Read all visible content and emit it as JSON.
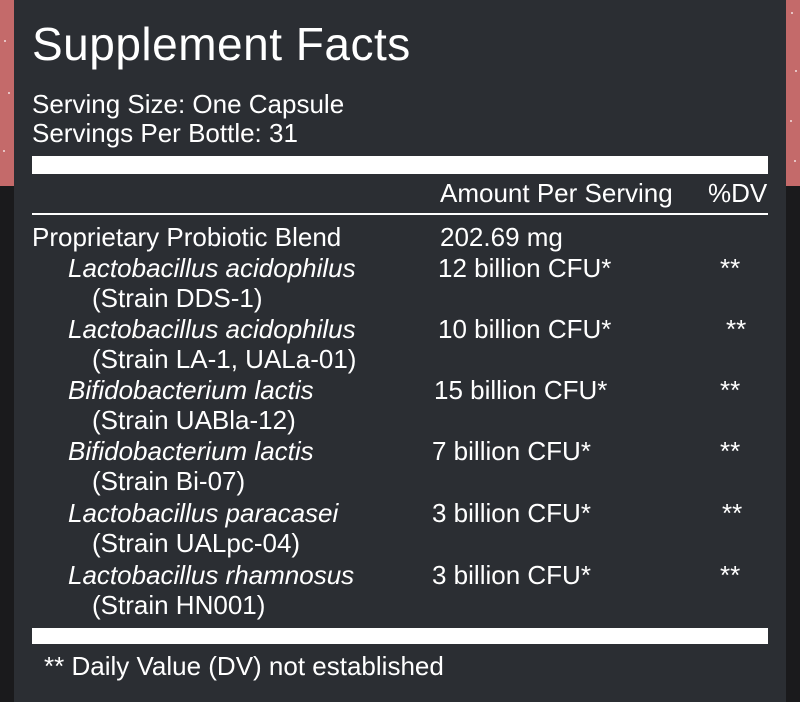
{
  "title": "Supplement Facts",
  "serving_size": "Serving Size: One Capsule",
  "servings_per_bottle": "Servings Per Bottle: 31",
  "columns": {
    "amount": "Amount Per Serving",
    "dv": "%DV"
  },
  "blend": {
    "name": "Proprietary Probiotic Blend",
    "amount": "202.69 mg"
  },
  "ingredients": [
    {
      "name": "Lactobacillus acidophilus",
      "strain": "(Strain DDS-1)",
      "amount": "12 billion CFU*",
      "dv": "**"
    },
    {
      "name": "Lactobacillus acidophilus",
      "strain": "(Strain LA-1, UALa-01)",
      "amount": "10 billion CFU*",
      "dv": "**"
    },
    {
      "name": "Bifidobacterium lactis",
      "strain": "(Strain UABla-12)",
      "amount": "15 billion CFU*",
      "dv": "**"
    },
    {
      "name": "Bifidobacterium lactis",
      "strain": "(Strain Bi-07)",
      "amount": "7 billion CFU*",
      "dv": "**"
    },
    {
      "name": "Lactobacillus paracasei",
      "strain": "(Strain UALpc-04)",
      "amount": "3 billion CFU*",
      "dv": "**"
    },
    {
      "name": "Lactobacillus rhamnosus",
      "strain": "(Strain HN001)",
      "amount": "3 billion CFU*",
      "dv": "**"
    }
  ],
  "footnote": "** Daily Value (DV) not established",
  "colors": {
    "panel": "#2b2e33",
    "background_top": "#c46a6a",
    "background_bottom": "#1a1a1c",
    "text": "#ffffff"
  }
}
